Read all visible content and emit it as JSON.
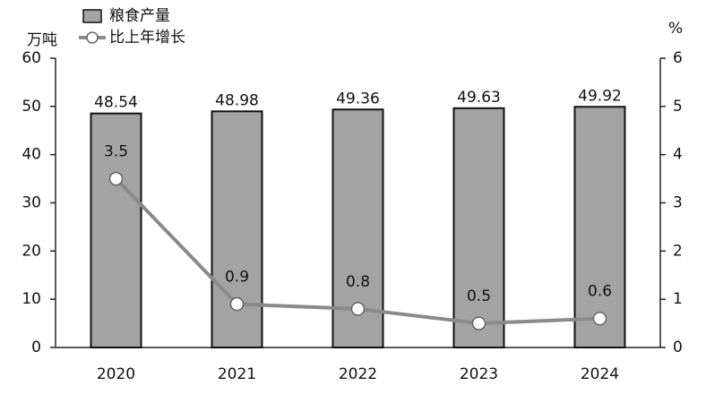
{
  "chart_data": {
    "type": "bar",
    "legend": "top-left",
    "y_unit": "万吨",
    "y2_unit": "%",
    "categories": [
      "2020",
      "2021",
      "2022",
      "2023",
      "2024"
    ],
    "series": [
      {
        "name": "粮食产量",
        "type": "bar",
        "color": "#a3a3a3",
        "values": [
          48.54,
          48.98,
          49.36,
          49.63,
          49.92
        ]
      },
      {
        "name": "比上年增长",
        "type": "line",
        "axis": "y2",
        "color": "#8a8a8a",
        "values": [
          3.5,
          0.9,
          0.8,
          0.5,
          0.6
        ]
      }
    ],
    "ylim": [
      0,
      60
    ],
    "yticks": [
      0,
      10,
      20,
      30,
      40,
      50,
      60
    ],
    "y2lim": [
      0,
      6
    ],
    "y2ticks": [
      0,
      1,
      2,
      3,
      4,
      5,
      6
    ]
  }
}
